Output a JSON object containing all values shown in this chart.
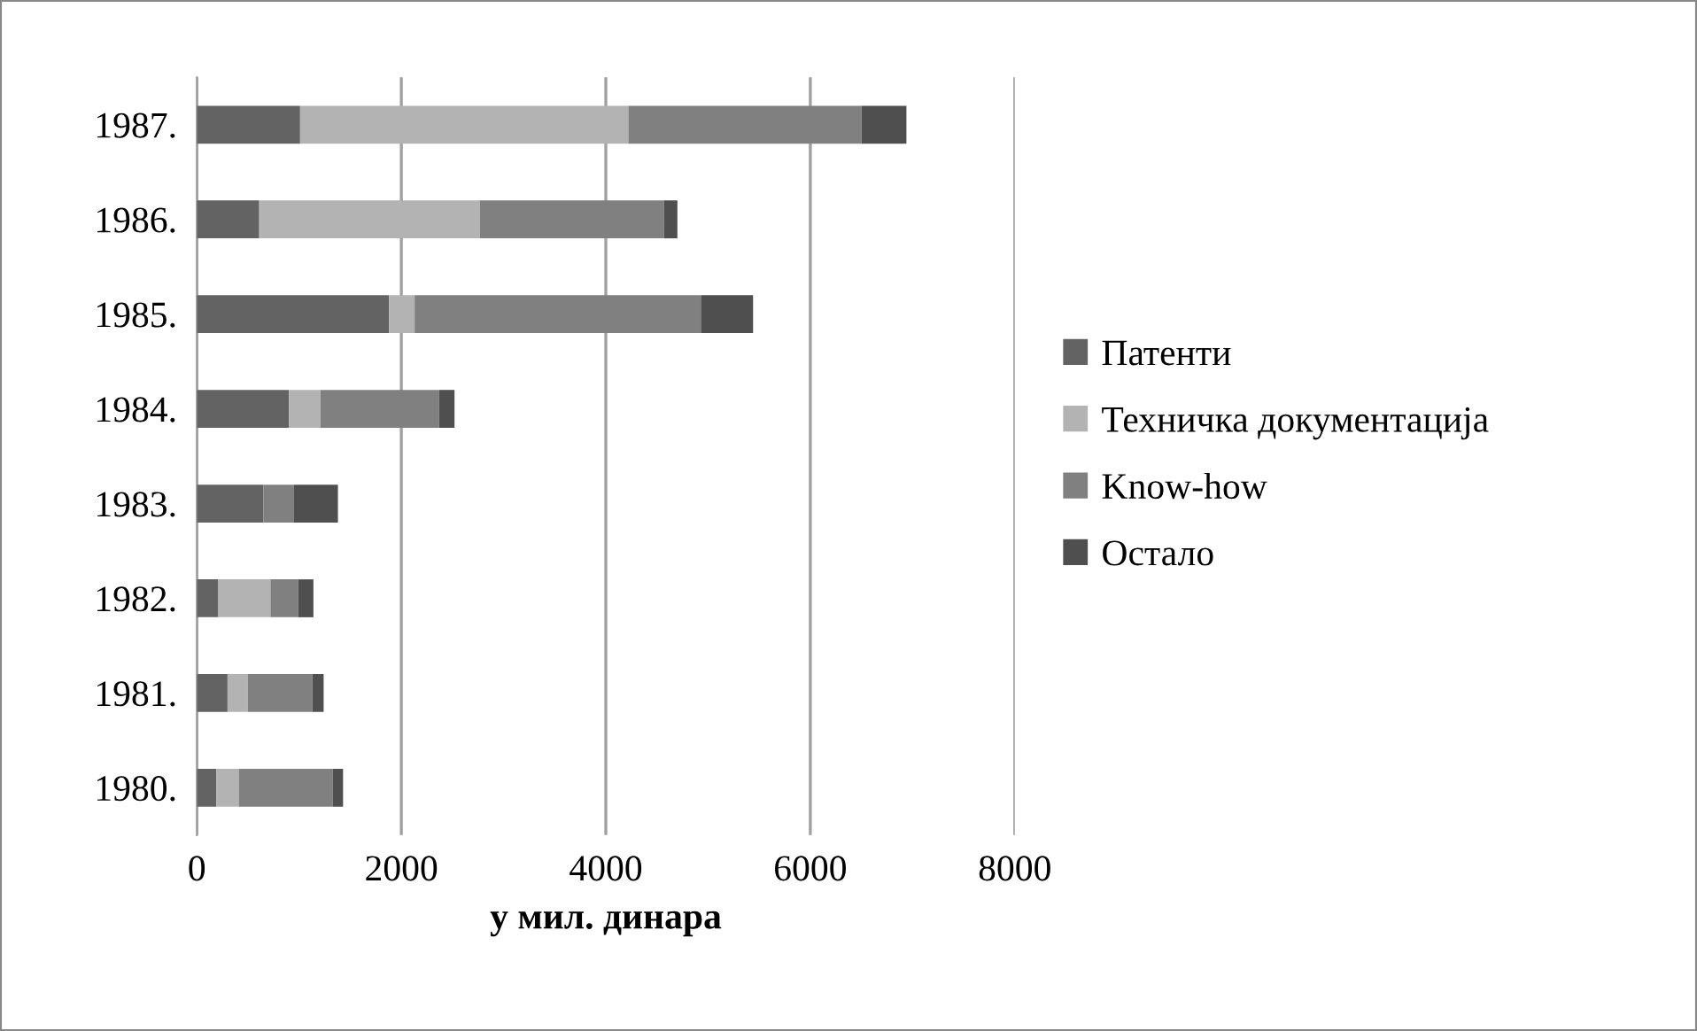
{
  "chart_data": {
    "type": "bar",
    "orientation": "horizontal",
    "stacked": true,
    "xlabel": "у мил. динара",
    "categories": [
      "1987.",
      "1986.",
      "1985.",
      "1984.",
      "1983.",
      "1982.",
      "1981.",
      "1980."
    ],
    "series": [
      {
        "name": "Патенти",
        "color": "#636363",
        "values": [
          1010,
          610,
          1880,
          900,
          650,
          210,
          300,
          190
        ]
      },
      {
        "name": "Техничка документација",
        "color": "#b3b3b3",
        "values": [
          3210,
          2160,
          250,
          310,
          null,
          510,
          200,
          220
        ]
      },
      {
        "name": "Know-how",
        "color": "#808080",
        "values": [
          2280,
          1800,
          2800,
          1160,
          300,
          270,
          630,
          920
        ]
      },
      {
        "name": "Остало",
        "color": "#4f4f4f",
        "values": [
          440,
          130,
          510,
          150,
          430,
          150,
          110,
          100
        ]
      }
    ],
    "xlim": [
      0,
      8000
    ],
    "xticks": [
      0,
      2000,
      4000,
      6000,
      8000
    ],
    "grid": "x",
    "legend": "right"
  }
}
